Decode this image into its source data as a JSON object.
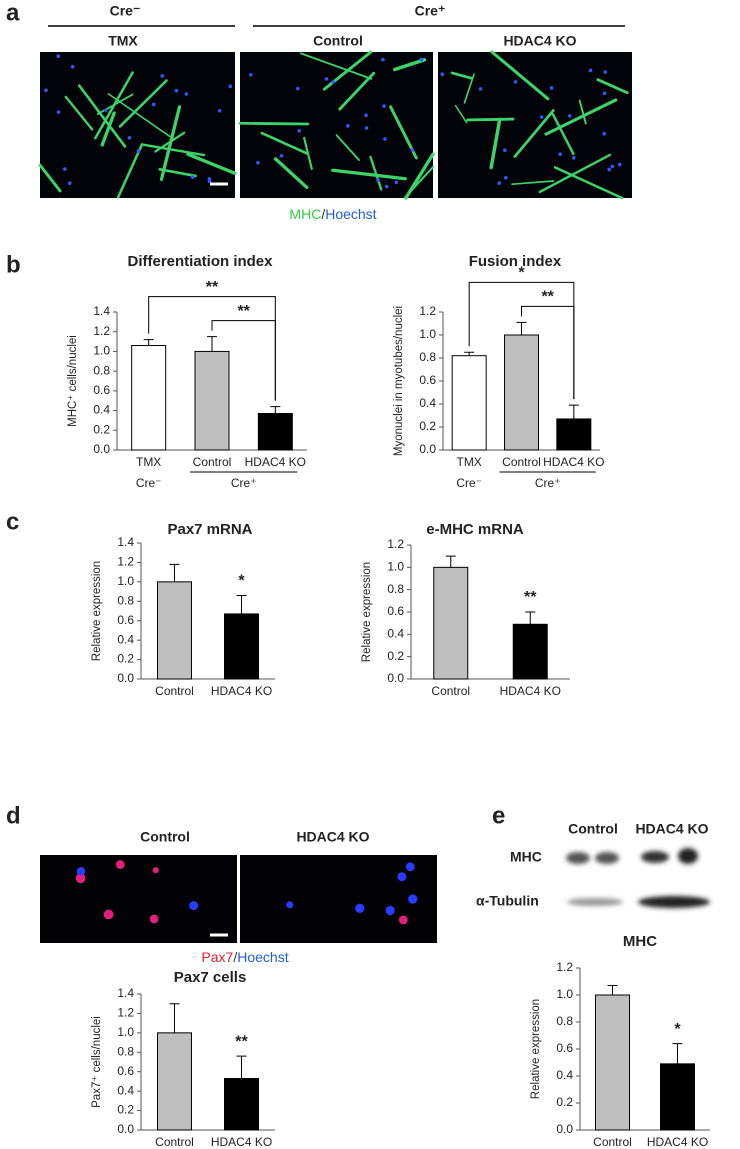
{
  "figure": {
    "panel_labels": [
      "a",
      "b",
      "c",
      "d",
      "e"
    ],
    "a": {
      "groups": [
        "Cre⁻",
        "Cre⁺"
      ],
      "conditions": [
        "TMX",
        "Control",
        "HDAC4 KO"
      ],
      "stain": [
        {
          "text": "MHC",
          "color": "#2ecc40"
        },
        {
          "text": "/",
          "color": "#333333"
        },
        {
          "text": "Hoechst",
          "color": "#1f5fd6"
        }
      ]
    },
    "d": {
      "conditions": [
        "Control",
        "HDAC4 KO"
      ],
      "stain": [
        {
          "text": "Pax7",
          "color": "#e02030"
        },
        {
          "text": "/",
          "color": "#333333"
        },
        {
          "text": "Hoechst",
          "color": "#1f5fd6"
        }
      ]
    },
    "e": {
      "conditions": [
        "Control",
        "HDAC4 KO"
      ],
      "bands": [
        "MHC",
        "α-Tubulin"
      ]
    }
  },
  "chart_data": [
    {
      "type": "bar",
      "title": "Differentiation index",
      "ylabel": "MHC⁺ cells/nuclei",
      "categories": [
        "TMX",
        "Control",
        "HDAC4 KO"
      ],
      "values": [
        1.06,
        1.0,
        0.37
      ],
      "errors": [
        0.06,
        0.15,
        0.07
      ],
      "colors": [
        "#ffffff",
        "#bfbfbf",
        "#000000"
      ],
      "ylim": [
        0,
        1.4
      ],
      "yticks": [
        {
          "value": 0,
          "label": "0.0"
        },
        0.2,
        0.4,
        0.6,
        0.8,
        {
          "value": 1,
          "label": "1.0"
        },
        1.2,
        1.4
      ],
      "significance": [
        {
          "label": "**",
          "between": [
            "Control",
            "HDAC4 KO"
          ]
        },
        {
          "label": "**",
          "between": [
            "TMX",
            "HDAC4 KO"
          ]
        }
      ],
      "groups": [
        {
          "label": "Cre⁻",
          "categories": [
            "TMX"
          ]
        },
        {
          "label": "Cre⁺",
          "categories": [
            "Control",
            "HDAC4 KO"
          ]
        }
      ]
    },
    {
      "type": "bar",
      "title": "Fusion index",
      "ylabel": "Myonuclei in myotubes/nuclei",
      "categories": [
        "TMX",
        "Control",
        "HDAC4 KO"
      ],
      "values": [
        0.82,
        1.0,
        0.27
      ],
      "errors": [
        0.03,
        0.11,
        0.12
      ],
      "colors": [
        "#ffffff",
        "#bfbfbf",
        "#000000"
      ],
      "ylim": [
        0,
        1.2
      ],
      "yticks": [
        {
          "value": 0,
          "label": "0.0"
        },
        0.2,
        0.4,
        0.6,
        0.8,
        {
          "value": 1,
          "label": "1.0"
        },
        1.2
      ],
      "significance": [
        {
          "label": "**",
          "between": [
            "Control",
            "HDAC4 KO"
          ]
        },
        {
          "label": "*",
          "between": [
            "TMX",
            "HDAC4 KO"
          ]
        }
      ],
      "groups": [
        {
          "label": "Cre⁻",
          "categories": [
            "TMX"
          ]
        },
        {
          "label": "Cre⁺",
          "categories": [
            "Control",
            "HDAC4 KO"
          ]
        }
      ]
    },
    {
      "type": "bar",
      "title": "Pax7 mRNA",
      "ylabel": "Relative expression",
      "categories": [
        "Control",
        "HDAC4 KO"
      ],
      "values": [
        1.0,
        0.67
      ],
      "errors": [
        0.18,
        0.19
      ],
      "colors": [
        "#bfbfbf",
        "#000000"
      ],
      "ylim": [
        0,
        1.4
      ],
      "yticks": [
        {
          "value": 0,
          "label": "0.0"
        },
        0.2,
        0.4,
        0.6,
        0.8,
        {
          "value": 1,
          "label": "1.0"
        },
        1.2,
        1.4
      ],
      "significance": [
        {
          "label": "*",
          "above": "HDAC4 KO"
        }
      ]
    },
    {
      "type": "bar",
      "title": "e-MHC mRNA",
      "ylabel": "Relative expression",
      "categories": [
        "Control",
        "HDAC4 KO"
      ],
      "values": [
        1.0,
        0.49
      ],
      "errors": [
        0.1,
        0.11
      ],
      "colors": [
        "#bfbfbf",
        "#000000"
      ],
      "ylim": [
        0,
        1.2
      ],
      "yticks": [
        {
          "value": 0,
          "label": "0.0"
        },
        0.2,
        0.4,
        0.6,
        0.8,
        {
          "value": 1,
          "label": "1.0"
        },
        1.2
      ],
      "significance": [
        {
          "label": "**",
          "above": "HDAC4 KO"
        }
      ]
    },
    {
      "type": "bar",
      "title": "Pax7 cells",
      "ylabel": "Pax7⁺ cells/nuclei",
      "categories": [
        "Control",
        "HDAC4 KO"
      ],
      "values": [
        1.0,
        0.53
      ],
      "errors": [
        0.3,
        0.23
      ],
      "colors": [
        "#bfbfbf",
        "#000000"
      ],
      "ylim": [
        0,
        1.4
      ],
      "yticks": [
        {
          "value": 0,
          "label": "0.0"
        },
        0.2,
        0.4,
        0.6,
        0.8,
        {
          "value": 1,
          "label": "1.0"
        },
        1.2,
        1.4
      ],
      "significance": [
        {
          "label": "**",
          "above": "HDAC4 KO"
        }
      ]
    },
    {
      "type": "bar",
      "title": "MHC",
      "ylabel": "Relative expression",
      "categories": [
        "Control",
        "HDAC4 KO"
      ],
      "values": [
        1.0,
        0.49
      ],
      "errors": [
        0.07,
        0.15
      ],
      "colors": [
        "#bfbfbf",
        "#000000"
      ],
      "ylim": [
        0,
        1.2
      ],
      "yticks": [
        {
          "value": 0,
          "label": "0.0"
        },
        0.2,
        0.4,
        0.6,
        0.8,
        {
          "value": 1,
          "label": "1.0"
        },
        1.2
      ],
      "significance": [
        {
          "label": "*",
          "above": "HDAC4 KO"
        }
      ]
    }
  ]
}
